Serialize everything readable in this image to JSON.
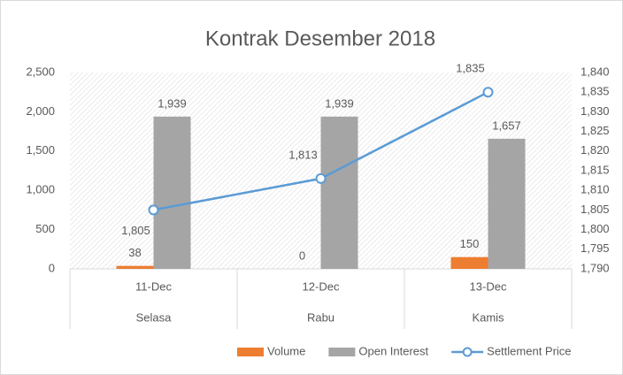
{
  "chart_data": {
    "type": "combo",
    "title": "Kontrak Desember 2018",
    "categories": [
      "11-Dec",
      "12-Dec",
      "13-Dec"
    ],
    "category_groups": [
      "Selasa",
      "Rabu",
      "Kamis"
    ],
    "series": [
      {
        "name": "Volume",
        "type": "bar",
        "color": "#ed7d31",
        "values": [
          38,
          0,
          150
        ]
      },
      {
        "name": "Open Interest",
        "type": "bar",
        "color": "#a5a5a5",
        "values": [
          1939,
          1939,
          1657
        ],
        "value_labels": [
          "1,939",
          "1,939",
          "1,657"
        ]
      },
      {
        "name": "Settlement Price",
        "type": "line",
        "axis": "y2",
        "color": "#5b9bd5",
        "values": [
          1805,
          1813,
          1835
        ],
        "value_labels": [
          "1,805",
          "1,813",
          "1,835"
        ]
      }
    ],
    "ylim": [
      0,
      2500
    ],
    "yticks": [
      0,
      500,
      {
        "value": 1000,
        "label": "1,000"
      },
      {
        "value": 1500,
        "label": "1,500"
      },
      {
        "value": 2000,
        "label": "2,000"
      },
      {
        "value": 2500,
        "label": "2,500"
      }
    ],
    "y2lim": [
      1790,
      1840
    ],
    "y2ticks": [
      {
        "value": 1790,
        "label": "1,790"
      },
      {
        "value": 1795,
        "label": "1,795"
      },
      {
        "value": 1800,
        "label": "1,800"
      },
      {
        "value": 1805,
        "label": "1,805"
      },
      {
        "value": 1810,
        "label": "1,810"
      },
      {
        "value": 1815,
        "label": "1,815"
      },
      {
        "value": 1820,
        "label": "1,820"
      },
      {
        "value": 1825,
        "label": "1,825"
      },
      {
        "value": 1830,
        "label": "1,830"
      },
      {
        "value": 1835,
        "label": "1,835"
      },
      {
        "value": 1840,
        "label": "1,840"
      }
    ],
    "grid": false,
    "legend": "bottom"
  }
}
